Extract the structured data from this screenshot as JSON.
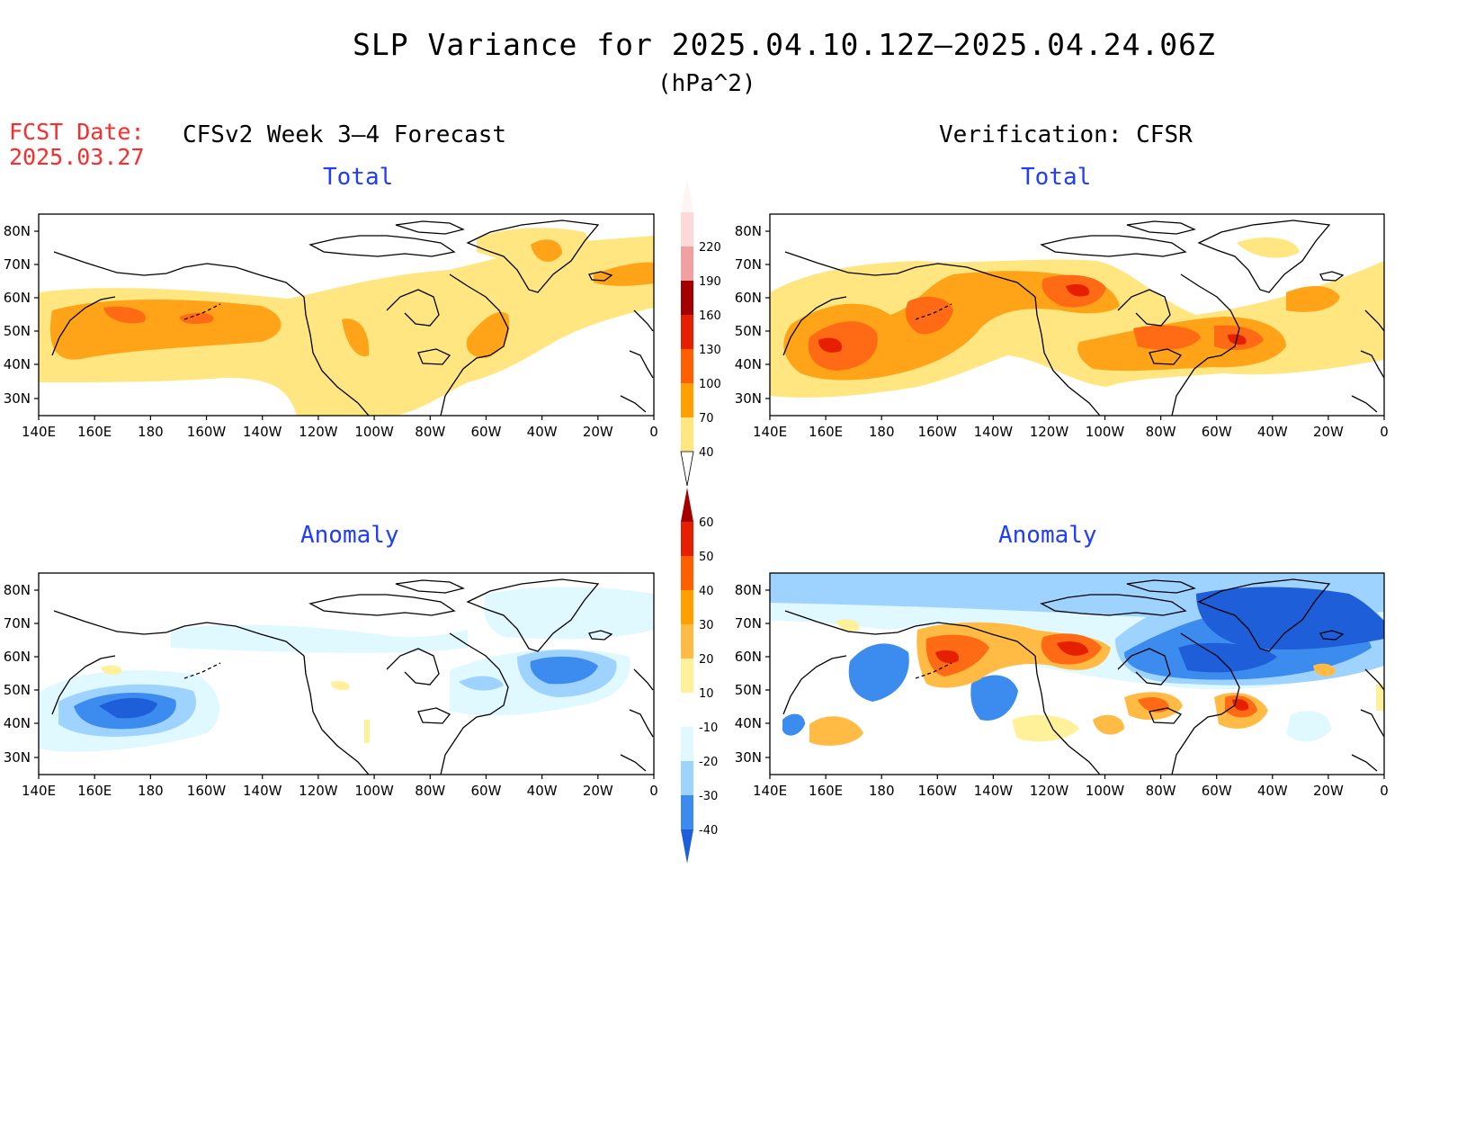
{
  "title": "SLP Variance for 2025.04.10.12Z—2025.04.24.06Z",
  "units": "(hPa^2)",
  "fcst_date_label": "FCST Date:",
  "fcst_date_value": "2025.03.27",
  "left_header": "CFSv2 Week 3–4 Forecast",
  "right_header": "Verification: CFSR",
  "panels": {
    "top_left_title": "Total",
    "top_right_title": "Total",
    "bottom_left_title": "Anomaly",
    "bottom_right_title": "Anomaly"
  },
  "lat_labels": [
    "80N",
    "70N",
    "60N",
    "50N",
    "40N",
    "30N"
  ],
  "lon_labels": [
    "140E",
    "160E",
    "180",
    "160W",
    "140W",
    "120W",
    "100W",
    "80W",
    "60W",
    "40W",
    "20W",
    "0"
  ],
  "colorbars": {
    "total": {
      "levels": [
        "40",
        "70",
        "100",
        "130",
        "160",
        "190",
        "220"
      ],
      "colors": [
        "#ffe680",
        "#ff9f00",
        "#ff5f00",
        "#e61f00",
        "#a50000",
        "#f0a0a0",
        "#ffd8d8",
        "#fff4f4"
      ]
    },
    "anomaly": {
      "levels": [
        "60",
        "50",
        "40",
        "30",
        "20",
        "10",
        "-10",
        "-20",
        "-30",
        "-40"
      ],
      "colors": [
        "#a50000",
        "#e61f00",
        "#ff5f00",
        "#ff9f00",
        "#ffbb44",
        "#fff09a",
        "#ffffff",
        "#e0f8ff",
        "#9ed2ff",
        "#3c8cf0",
        "#1e5ed8"
      ]
    }
  },
  "colors": {
    "title_blue": "#1f3cff",
    "fcst_red": "#ff2a2a"
  }
}
